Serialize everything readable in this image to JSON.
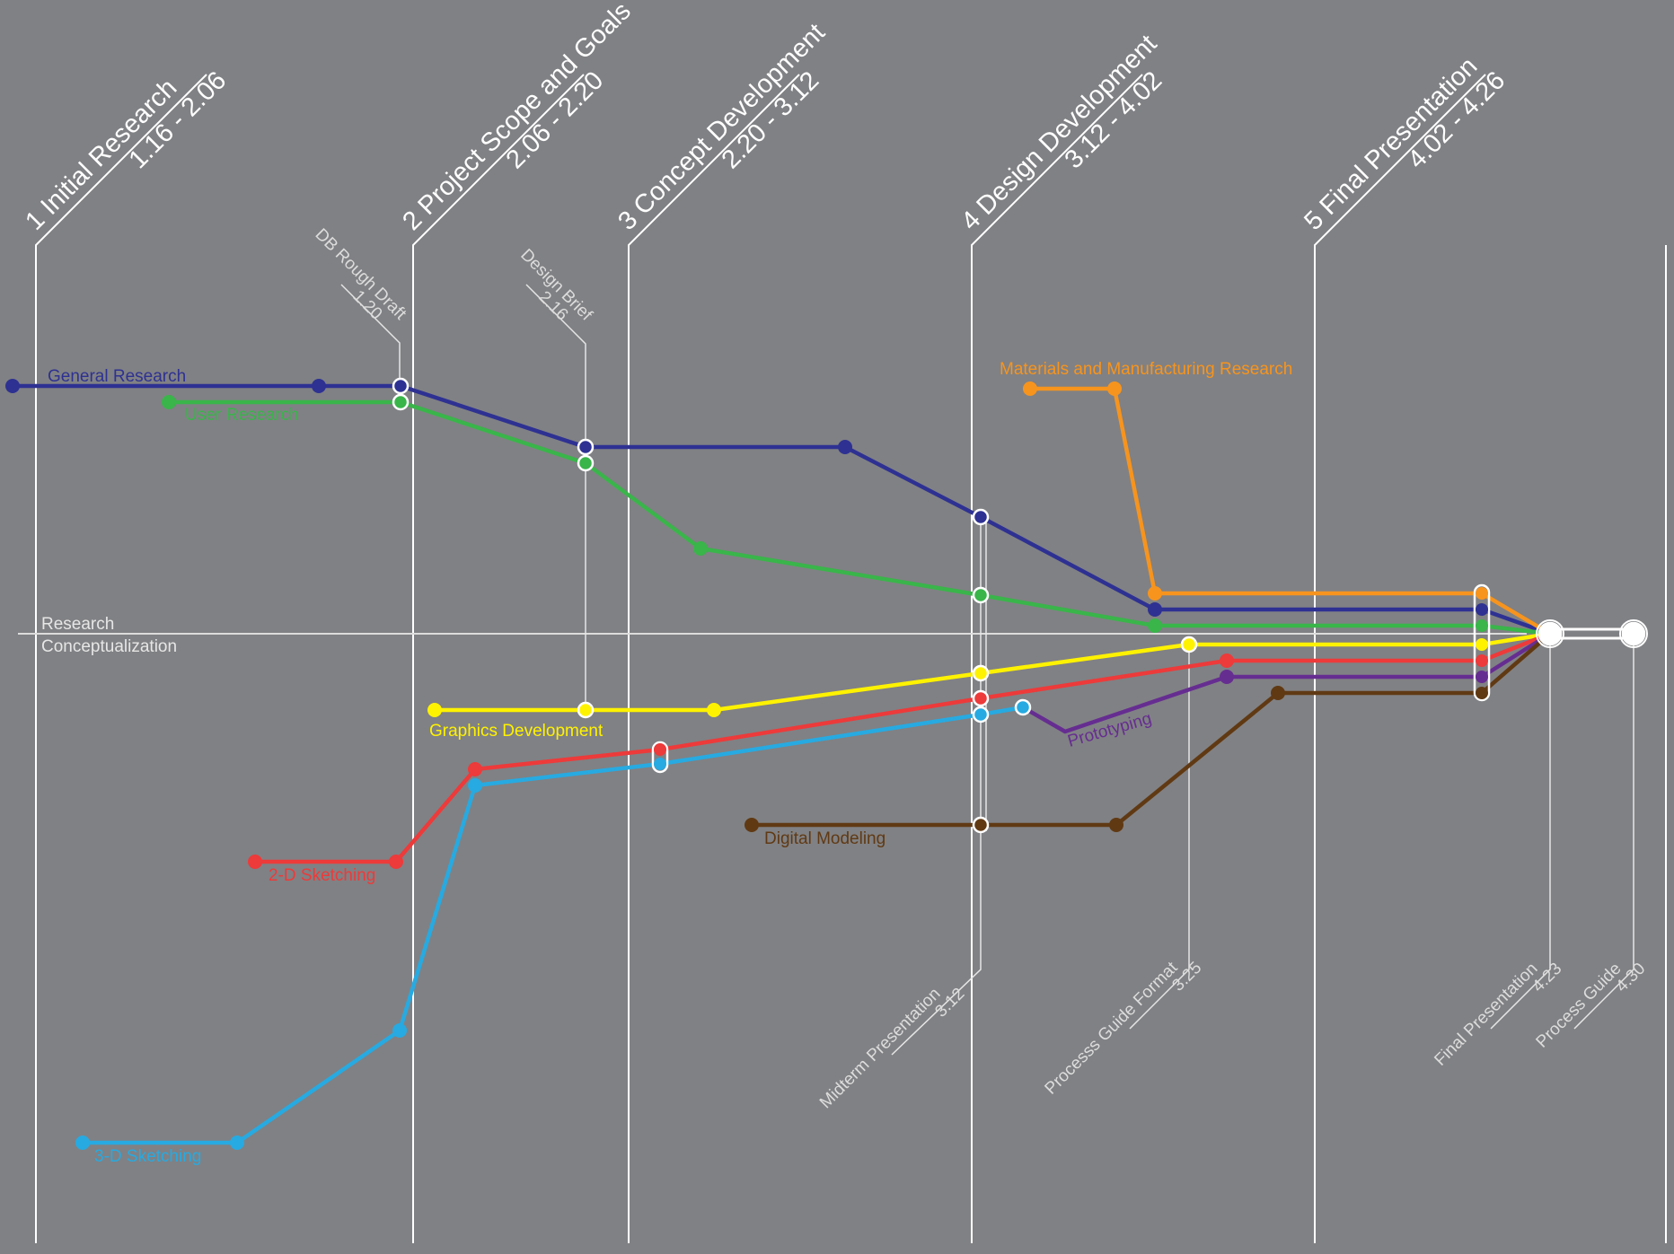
{
  "phases": [
    {
      "title": "1 Initial Research",
      "dates": "1.16 - 2.06"
    },
    {
      "title": "2 Project Scope and Goals",
      "dates": "2.06 - 2.20"
    },
    {
      "title": "3 Concept Development",
      "dates": "2.20 - 3.12"
    },
    {
      "title": "4 Design Development",
      "dates": "3.12 - 4.02"
    },
    {
      "title": "5 Final Presentation",
      "dates": "4.02 - 4.26"
    }
  ],
  "milestones": [
    {
      "name": "DB Rough Draft",
      "date": "1.20"
    },
    {
      "name": "Design Brief",
      "date": "2.16"
    },
    {
      "name": "Midterm Presentation",
      "date": "3.12"
    },
    {
      "name": "Processs Guide Format",
      "date": "3.25"
    },
    {
      "name": "Final Presentation",
      "date": "4.23"
    },
    {
      "name": "Process Guide",
      "date": "4.30"
    }
  ],
  "axis": {
    "upper_label": "Research",
    "lower_label": "Conceptualization"
  },
  "streams": [
    {
      "name": "General Research",
      "color": "#2e3192"
    },
    {
      "name": "User Research",
      "color": "#39b54a"
    },
    {
      "name": "Materials and Manufacturing Research",
      "color": "#f7941d"
    },
    {
      "name": "Graphics Development",
      "color": "#fff200"
    },
    {
      "name": "2-D Sketching",
      "color": "#ed3a3a"
    },
    {
      "name": "3-D Sketching",
      "color": "#27aae1"
    },
    {
      "name": "Prototyping",
      "color": "#662d91"
    },
    {
      "name": "Digital Modeling",
      "color": "#603913"
    }
  ]
}
